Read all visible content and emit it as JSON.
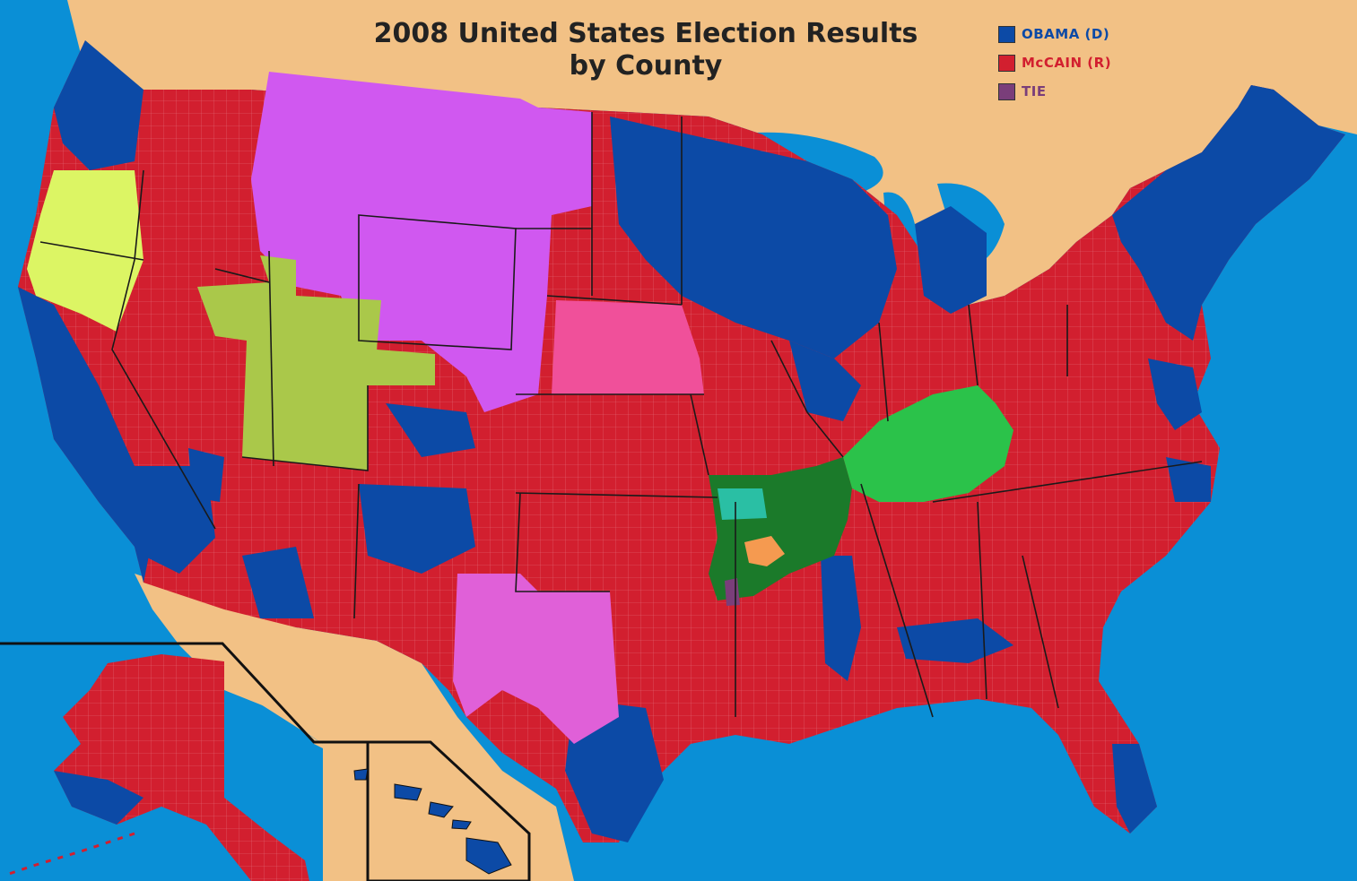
{
  "title": {
    "line1": "2008 United States Election Results",
    "line2": "by County"
  },
  "legend": [
    {
      "label": "OBAMA (D)",
      "color": "#0c4aa6"
    },
    {
      "label": "McCAIN (R)",
      "color": "#d21f2f"
    },
    {
      "label": "TIE",
      "color": "#7a3e7a"
    }
  ],
  "colors": {
    "ocean": "#0a8fd6",
    "land_foreign": "#f2c185",
    "lakes": "#0a8fd6",
    "obama": "#0c4aa6",
    "mccain": "#d21f2f",
    "tie": "#7a3e7a",
    "highlight_magenta": "#d058f0",
    "highlight_pink": "#f0509a",
    "highlight_yellow_green": "#dcf564",
    "highlight_olive_green": "#aac84a",
    "highlight_bright_green": "#2bc24a",
    "highlight_dark_green": "#1b7a2a",
    "highlight_teal": "#2abfa4",
    "highlight_orange": "#f59a50",
    "highlight_texas_pink": "#e060d8"
  }
}
